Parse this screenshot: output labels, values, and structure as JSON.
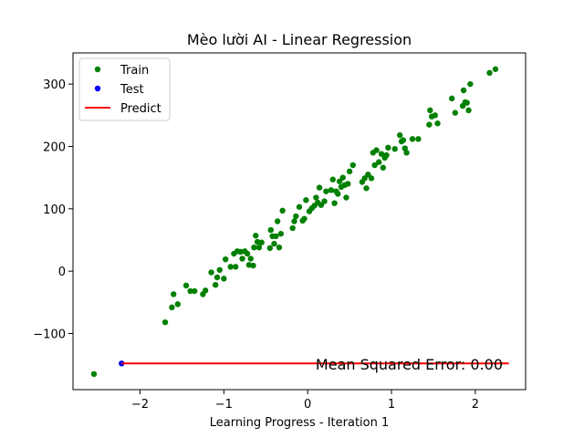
{
  "chart_data": {
    "type": "scatter",
    "title": "Mèo lười AI - Linear Regression",
    "xlabel": "Learning Progress - Iteration 1",
    "ylabel": "",
    "xlim": [
      -2.8,
      2.6
    ],
    "ylim": [
      -190,
      350
    ],
    "xticks": [
      -2,
      -1,
      0,
      1,
      2
    ],
    "xtick_labels": [
      "−2",
      "−1",
      "0",
      "1",
      "2"
    ],
    "yticks": [
      -100,
      0,
      100,
      200,
      300
    ],
    "ytick_labels": [
      "−100",
      "0",
      "100",
      "200",
      "300"
    ],
    "grid": false,
    "legend_position": "top-left",
    "annotation": "Mean Squared Error: 0.00",
    "series": [
      {
        "name": "Train",
        "kind": "scatter",
        "color": "#008000",
        "points": [
          [
            -2.55,
            -165
          ],
          [
            -1.7,
            -82
          ],
          [
            -1.62,
            -58
          ],
          [
            -1.6,
            -37
          ],
          [
            -1.55,
            -53
          ],
          [
            -1.45,
            -23
          ],
          [
            -1.4,
            -32
          ],
          [
            -1.35,
            -32
          ],
          [
            -1.25,
            -37
          ],
          [
            -1.22,
            -31
          ],
          [
            -1.15,
            -2
          ],
          [
            -1.1,
            -22
          ],
          [
            -1.08,
            -10
          ],
          [
            -1.05,
            2
          ],
          [
            -1.0,
            -12
          ],
          [
            -0.98,
            19
          ],
          [
            -0.92,
            7
          ],
          [
            -0.88,
            28
          ],
          [
            -0.86,
            7
          ],
          [
            -0.84,
            32
          ],
          [
            -0.8,
            31
          ],
          [
            -0.78,
            20
          ],
          [
            -0.75,
            32
          ],
          [
            -0.72,
            28
          ],
          [
            -0.7,
            10
          ],
          [
            -0.68,
            20
          ],
          [
            -0.65,
            9
          ],
          [
            -0.64,
            38
          ],
          [
            -0.62,
            57
          ],
          [
            -0.6,
            47
          ],
          [
            -0.58,
            38
          ],
          [
            -0.55,
            46
          ],
          [
            -0.45,
            37
          ],
          [
            -0.44,
            66
          ],
          [
            -0.42,
            56
          ],
          [
            -0.4,
            44
          ],
          [
            -0.38,
            56
          ],
          [
            -0.36,
            80
          ],
          [
            -0.34,
            38
          ],
          [
            -0.32,
            60
          ],
          [
            -0.3,
            97
          ],
          [
            -0.18,
            69
          ],
          [
            -0.16,
            80
          ],
          [
            -0.14,
            88
          ],
          [
            -0.1,
            103
          ],
          [
            -0.06,
            81
          ],
          [
            -0.04,
            84
          ],
          [
            -0.02,
            114
          ],
          [
            0.02,
            96
          ],
          [
            0.05,
            101
          ],
          [
            0.08,
            105
          ],
          [
            0.1,
            118
          ],
          [
            0.12,
            110
          ],
          [
            0.14,
            134
          ],
          [
            0.16,
            106
          ],
          [
            0.2,
            112
          ],
          [
            0.22,
            128
          ],
          [
            0.28,
            130
          ],
          [
            0.3,
            147
          ],
          [
            0.32,
            109
          ],
          [
            0.34,
            128
          ],
          [
            0.36,
            124
          ],
          [
            0.38,
            144
          ],
          [
            0.4,
            135
          ],
          [
            0.42,
            150
          ],
          [
            0.44,
            138
          ],
          [
            0.46,
            118
          ],
          [
            0.48,
            140
          ],
          [
            0.5,
            160
          ],
          [
            0.54,
            170
          ],
          [
            0.65,
            143
          ],
          [
            0.68,
            149
          ],
          [
            0.7,
            133
          ],
          [
            0.72,
            155
          ],
          [
            0.76,
            149
          ],
          [
            0.78,
            190
          ],
          [
            0.8,
            170
          ],
          [
            0.82,
            194
          ],
          [
            0.85,
            175
          ],
          [
            0.88,
            188
          ],
          [
            0.9,
            166
          ],
          [
            0.92,
            182
          ],
          [
            0.94,
            186
          ],
          [
            0.96,
            198
          ],
          [
            1.04,
            196
          ],
          [
            1.1,
            218
          ],
          [
            1.12,
            208
          ],
          [
            1.14,
            210
          ],
          [
            1.16,
            197
          ],
          [
            1.18,
            190
          ],
          [
            1.25,
            212
          ],
          [
            1.32,
            212
          ],
          [
            1.45,
            235
          ],
          [
            1.46,
            258
          ],
          [
            1.48,
            248
          ],
          [
            1.52,
            250
          ],
          [
            1.55,
            237
          ],
          [
            1.72,
            277
          ],
          [
            1.76,
            254
          ],
          [
            1.85,
            265
          ],
          [
            1.86,
            290
          ],
          [
            1.88,
            271
          ],
          [
            1.9,
            270
          ],
          [
            1.92,
            258
          ],
          [
            1.94,
            300
          ],
          [
            2.17,
            318
          ],
          [
            2.24,
            324
          ]
        ]
      },
      {
        "name": "Test",
        "kind": "scatter",
        "color": "#0000ff",
        "points": [
          [
            -2.22,
            -148
          ]
        ]
      },
      {
        "name": "Predict",
        "kind": "line",
        "color": "#ff0000",
        "points": [
          [
            -2.22,
            -148
          ],
          [
            2.4,
            -148
          ]
        ]
      }
    ]
  }
}
